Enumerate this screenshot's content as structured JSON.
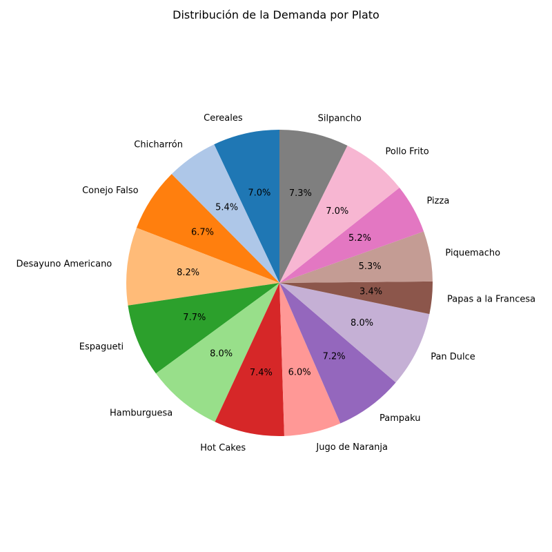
{
  "chart_data": {
    "type": "pie",
    "title": "Distribución de la Demanda por Plato",
    "start_angle_deg": 90,
    "direction": "counterclockwise",
    "slices": [
      {
        "label": "Cereales",
        "value": 7.0,
        "pct_label": "7.0%",
        "color": "#1f77b4"
      },
      {
        "label": "Chicharrón",
        "value": 5.4,
        "pct_label": "5.4%",
        "color": "#aec7e8"
      },
      {
        "label": "Conejo Falso",
        "value": 6.7,
        "pct_label": "6.7%",
        "color": "#ff7f0e"
      },
      {
        "label": "Desayuno Americano",
        "value": 8.2,
        "pct_label": "8.2%",
        "color": "#ffbb78"
      },
      {
        "label": "Espagueti",
        "value": 7.7,
        "pct_label": "7.7%",
        "color": "#2ca02c"
      },
      {
        "label": "Hamburguesa",
        "value": 8.0,
        "pct_label": "8.0%",
        "color": "#98df8a"
      },
      {
        "label": "Hot Cakes",
        "value": 7.4,
        "pct_label": "7.4%",
        "color": "#d62728"
      },
      {
        "label": "Jugo de Naranja",
        "value": 6.0,
        "pct_label": "6.0%",
        "color": "#ff9896"
      },
      {
        "label": "Pampaku",
        "value": 7.2,
        "pct_label": "7.2%",
        "color": "#9467bd"
      },
      {
        "label": "Pan Dulce",
        "value": 8.0,
        "pct_label": "8.0%",
        "color": "#c5b0d5"
      },
      {
        "label": "Papas a la Francesa",
        "value": 3.4,
        "pct_label": "3.4%",
        "color": "#8c564b"
      },
      {
        "label": "Piquemacho",
        "value": 5.3,
        "pct_label": "5.3%",
        "color": "#c49c94"
      },
      {
        "label": "Pizza",
        "value": 5.2,
        "pct_label": "5.2%",
        "color": "#e377c2"
      },
      {
        "label": "Pollo Frito",
        "value": 7.0,
        "pct_label": "7.0%",
        "color": "#f7b6d2"
      },
      {
        "label": "Silpancho",
        "value": 7.3,
        "pct_label": "7.3%",
        "color": "#7f7f7f"
      }
    ]
  }
}
